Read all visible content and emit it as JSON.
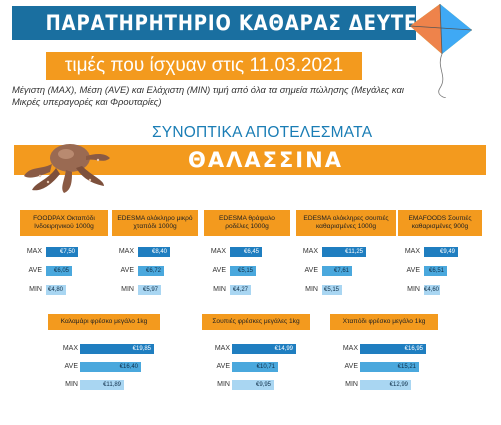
{
  "header": {
    "title": "ΠΑΡΑΤΗΡΗΤΗΡΙΟ ΚΑΘΑΡΑΣ ΔΕΥΤΕΡΑΣ",
    "date_line": "τιμές που ίσχυαν στις 11.03.2021",
    "subtitle": "Μέγιστη (MAX), Μέση (AVE) και Ελάχιστη (MIN) τιμή από όλα τα σημεία πώλησης (Μεγάλες και Μικρές υπεραγορές και Φρουταρίες)"
  },
  "section": {
    "summary_title": "ΣΥΝΟΠΤΙΚΑ ΑΠΟΤΕΛΕΣΜΑΤΑ",
    "category": "ΘΑΛΑΣΣΙΝΑ"
  },
  "labels": {
    "max": "MAX",
    "ave": "AVE",
    "min": "MIN"
  },
  "colors": {
    "header": "#1a6fa0",
    "accent": "#f39a1e",
    "max": "#1f7ec0",
    "ave": "#4aa8dd",
    "min": "#a9d6f2"
  },
  "products": [
    {
      "name": "FOODPAX Οκταπόδι Ινδοειρηνικού 1000g",
      "max": "€7,50",
      "ave": "€6,05",
      "min": "€4,80",
      "max_v": 7.5,
      "ave_v": 6.05,
      "min_v": 4.8
    },
    {
      "name": "EDESMA ολόκληρο μικρό χταπόδι 1000g",
      "max": "€8,40",
      "ave": "€6,72",
      "min": "€5,97",
      "max_v": 8.4,
      "ave_v": 6.72,
      "min_v": 5.97
    },
    {
      "name": "EDESMA θράψαλο ροδέλες 1000g",
      "max": "€6,45",
      "ave": "€5,15",
      "min": "€4,27",
      "max_v": 6.45,
      "ave_v": 5.15,
      "min_v": 4.27
    },
    {
      "name": "EDESMA ολόκληρες σουπιές καθαρισμένες 1000g",
      "max": "€11,25",
      "ave": "€7,61",
      "min": "€5,15",
      "max_v": 11.25,
      "ave_v": 7.61,
      "min_v": 5.15
    },
    {
      "name": "EMAFOODS Σουπιές καθαρισμένες 900g",
      "max": "€9,49",
      "ave": "€6,51",
      "min": "€4,60",
      "max_v": 9.49,
      "ave_v": 6.51,
      "min_v": 4.6
    },
    {
      "name": "Καλαμάρι φρέσκο μεγάλο 1kg",
      "max": "€19,85",
      "ave": "€16,40",
      "min": "€11,89",
      "max_v": 19.85,
      "ave_v": 16.4,
      "min_v": 11.89
    },
    {
      "name": "Σουπιές φρέσκες μεγάλες 1kg",
      "max": "€14,99",
      "ave": "€10,71",
      "min": "€9,95",
      "max_v": 14.99,
      "ave_v": 10.71,
      "min_v": 9.95
    },
    {
      "name": "Χταπόδι φρέσκο μεγάλο 1kg",
      "max": "€16,95",
      "ave": "€15,21",
      "min": "€12,99",
      "max_v": 16.95,
      "ave_v": 15.21,
      "min_v": 12.99
    }
  ]
}
